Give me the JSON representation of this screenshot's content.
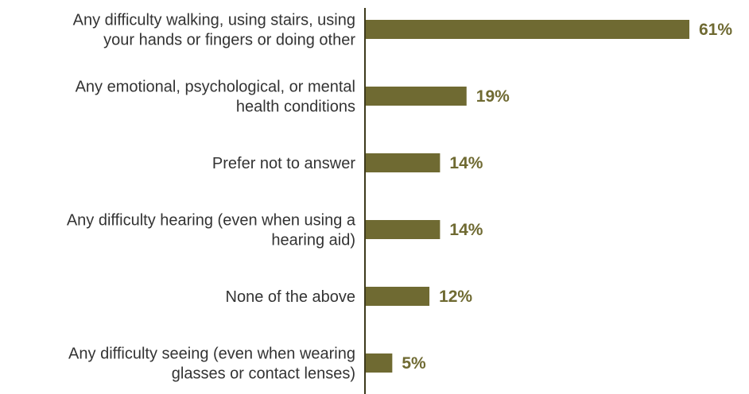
{
  "chart_data": {
    "type": "bar",
    "orientation": "horizontal",
    "categories": [
      [
        "Any difficulty walking, using stairs, using",
        "your hands or fingers or doing other"
      ],
      [
        "Any emotional, psychological, or mental",
        "health conditions"
      ],
      [
        "Prefer not to answer"
      ],
      [
        "Any difficulty hearing (even when using a",
        "hearing aid)"
      ],
      [
        "None of the above"
      ],
      [
        "Any difficulty seeing (even when wearing",
        "glasses or contact lenses)"
      ]
    ],
    "values": [
      61,
      19,
      14,
      14,
      12,
      5
    ],
    "value_labels": [
      "61%",
      "19%",
      "14%",
      "14%",
      "12%",
      "5%"
    ],
    "xlim": [
      0,
      61
    ],
    "grid": false,
    "legend": "none",
    "bar_color": "#6f6a32",
    "axis_color": "#3d3a1c",
    "label_color": "#333333"
  }
}
